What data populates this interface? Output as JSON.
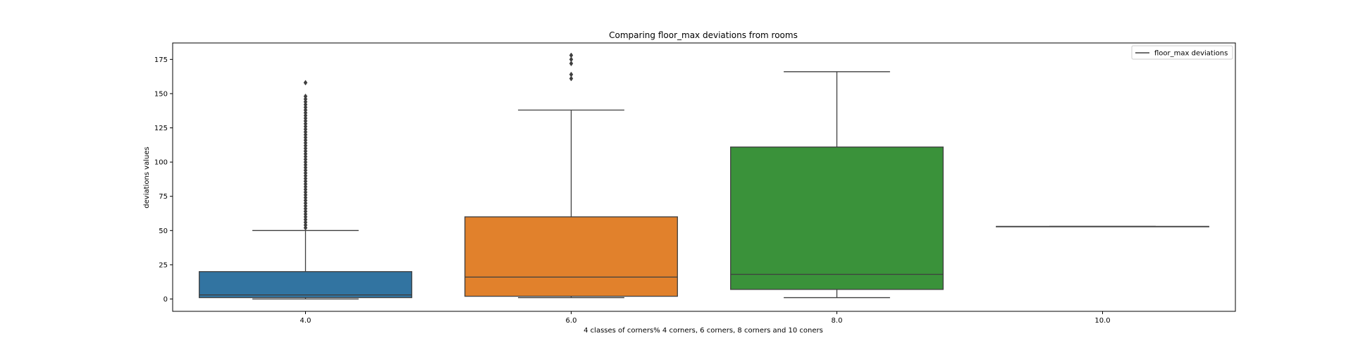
{
  "chart_data": {
    "type": "box",
    "title": "Comparing floor_max deviations from rooms",
    "xlabel": "4 classes of corners% 4 corners, 6 corners, 8 corners and 10 coners",
    "ylabel": "deviations values",
    "categories": [
      "4.0",
      "6.0",
      "8.0",
      "10.0"
    ],
    "yticks": [
      "0",
      "25",
      "50",
      "75",
      "100",
      "125",
      "150",
      "175"
    ],
    "ylim": [
      -9,
      187
    ],
    "legend": {
      "label": "floor_max deviations",
      "placement": "top-right"
    },
    "boxes": [
      {
        "category": "4.0",
        "color": "#3274a1",
        "min": 0,
        "q1": 1,
        "median": 3,
        "q3": 20,
        "max": 50,
        "outliers": [
          52,
          54,
          56,
          58,
          60,
          62,
          64,
          66,
          68,
          70,
          72,
          74,
          76,
          78,
          80,
          82,
          84,
          86,
          88,
          90,
          92,
          94,
          96,
          98,
          100,
          102,
          104,
          106,
          108,
          110,
          112,
          114,
          116,
          118,
          120,
          122,
          124,
          126,
          128,
          130,
          132,
          134,
          136,
          138,
          140,
          142,
          144,
          146,
          148,
          158
        ]
      },
      {
        "category": "6.0",
        "color": "#e1812c",
        "min": 1,
        "q1": 2,
        "median": 16,
        "q3": 60,
        "max": 138,
        "outliers": [
          161,
          164,
          172,
          175,
          178
        ]
      },
      {
        "category": "8.0",
        "color": "#3a923a",
        "min": 1,
        "q1": 7,
        "median": 18,
        "q3": 111,
        "max": 166,
        "outliers": []
      },
      {
        "category": "10.0",
        "color": "#c03d3e",
        "min": 53,
        "q1": 53,
        "median": 53,
        "q3": 53,
        "max": 53,
        "outliers": []
      }
    ]
  }
}
